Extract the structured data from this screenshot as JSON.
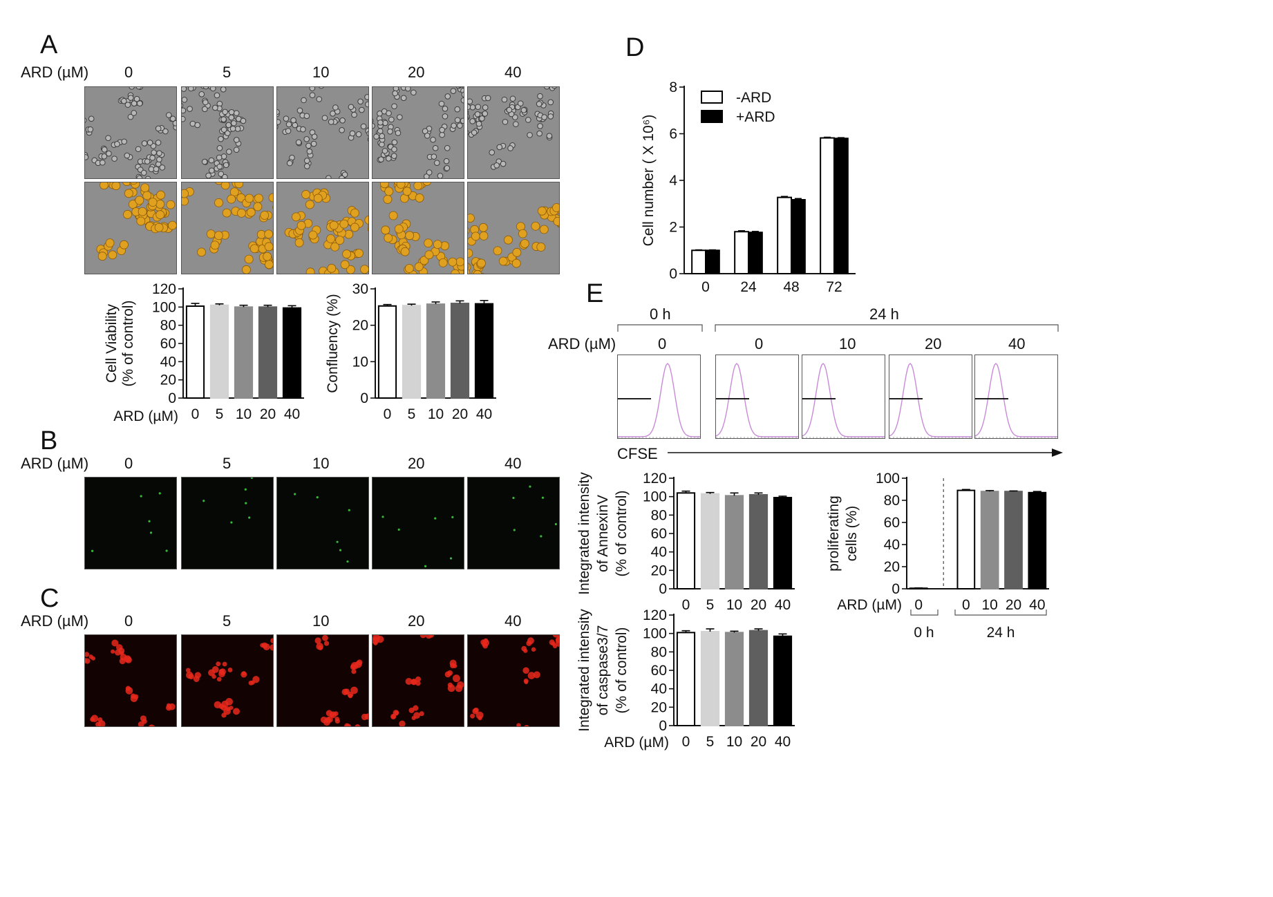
{
  "panel_labels": {
    "a": "A",
    "b": "B",
    "c": "C",
    "d": "D",
    "e": "E"
  },
  "concentration_label": "ARD (µM)",
  "concentrations": [
    "0",
    "5",
    "10",
    "20",
    "40"
  ],
  "colors": {
    "bar_0": "#ffffff",
    "bar_5": "#d3d3d3",
    "bar_10": "#8c8c8c",
    "bar_20": "#5f5f5f",
    "bar_40": "#000000",
    "histogram": "#c88ad8",
    "segmentation": "#e0a020",
    "annexin_dots": "#38b838",
    "caspase": "#e8281c"
  },
  "panel_e": {
    "time_0h": "0 h",
    "time_24h": "24 h",
    "flow_concentrations": [
      "0",
      "0",
      "10",
      "20",
      "40"
    ],
    "cfse_label": "CFSE"
  },
  "chart_data": [
    {
      "id": "viability",
      "type": "bar",
      "ylabel": "Cell Viability\n(% of control)",
      "xlabel": "ARD (µM)",
      "categories": [
        "0",
        "5",
        "10",
        "20",
        "40"
      ],
      "values": [
        101,
        102,
        100,
        100,
        99
      ],
      "errors": [
        3,
        1.5,
        2,
        2,
        2.5
      ],
      "ylim": [
        0,
        120
      ],
      "yticks": [
        0,
        20,
        40,
        60,
        80,
        100,
        120
      ]
    },
    {
      "id": "confluency",
      "type": "bar",
      "ylabel": "Confluency (%)",
      "categories": [
        "0",
        "5",
        "10",
        "20",
        "40"
      ],
      "values": [
        25.3,
        25.4,
        25.8,
        26.0,
        25.9
      ],
      "errors": [
        0.4,
        0.4,
        0.6,
        0.7,
        0.9
      ],
      "ylim": [
        0,
        30
      ],
      "yticks": [
        0,
        10,
        20,
        30
      ]
    },
    {
      "id": "cell_number",
      "type": "bar",
      "ylabel": "Cell number ( X 10⁶)",
      "categories": [
        "0",
        "24",
        "48",
        "72"
      ],
      "series": [
        {
          "name": "-ARD",
          "values": [
            1.0,
            1.8,
            3.27,
            5.82
          ],
          "errors": [
            0.02,
            0.04,
            0.04,
            0.03
          ]
        },
        {
          "name": "+ARD",
          "values": [
            1.0,
            1.77,
            3.17,
            5.8
          ],
          "errors": [
            0.02,
            0.04,
            0.05,
            0.03
          ]
        }
      ],
      "ylim": [
        0,
        8
      ],
      "yticks": [
        0,
        2,
        4,
        6,
        8
      ],
      "legend": "top-left"
    },
    {
      "id": "annexin",
      "type": "bar",
      "ylabel": "Integrated intensity\nof AnnexinV\n(% of control)",
      "categories": [
        "0",
        "5",
        "10",
        "20",
        "40"
      ],
      "values": [
        104,
        103,
        101,
        102,
        99
      ],
      "errors": [
        2,
        1.5,
        3,
        2,
        1.5
      ],
      "ylim": [
        0,
        120
      ],
      "yticks": [
        0,
        20,
        40,
        60,
        80,
        100,
        120
      ]
    },
    {
      "id": "caspase",
      "type": "bar",
      "ylabel": "Integrated intensity\nof caspase3/7\n(% of control)",
      "xlabel": "ARD (µM)",
      "categories": [
        "0",
        "5",
        "10",
        "20",
        "40"
      ],
      "values": [
        101,
        102,
        101,
        103,
        97
      ],
      "errors": [
        2,
        3,
        1.5,
        2,
        2.5
      ],
      "ylim": [
        0,
        120
      ],
      "yticks": [
        0,
        20,
        40,
        60,
        80,
        100,
        120
      ]
    },
    {
      "id": "proliferating",
      "type": "bar",
      "ylabel": "proliferating\ncells (%)",
      "xlabel": "ARD (µM)",
      "categories": [
        "0",
        "0",
        "10",
        "20",
        "40"
      ],
      "group_labels": [
        "0 h",
        "24 h"
      ],
      "values": [
        0.5,
        89,
        88,
        88,
        87
      ],
      "errors": [
        0.3,
        0.8,
        0.8,
        0.5,
        1.0
      ],
      "ylim": [
        0,
        100
      ],
      "yticks": [
        0,
        20,
        40,
        60,
        80,
        100
      ]
    }
  ]
}
